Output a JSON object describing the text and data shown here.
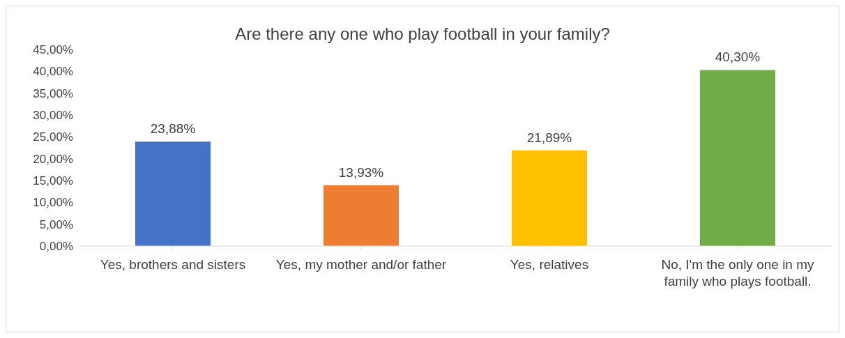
{
  "chart_data": {
    "type": "bar",
    "title": "Are there any one who play football in your family?",
    "categories": [
      "Yes, brothers and sisters",
      "Yes, my mother and/or father",
      "Yes, relatives",
      "No, I'm the only one in my family who plays football."
    ],
    "values": [
      23.88,
      13.93,
      21.89,
      40.3
    ],
    "colors": [
      "#4472c4",
      "#ed7d31",
      "#ffc000",
      "#70ad47"
    ],
    "value_labels": [
      "23,88%",
      "13,93%",
      "21,89%",
      "40,30%"
    ],
    "ylim": [
      0,
      45
    ],
    "yticks": [
      {
        "value": 0,
        "label": "0,00%"
      },
      {
        "value": 5,
        "label": "5,00%"
      },
      {
        "value": 10,
        "label": "10,00%"
      },
      {
        "value": 15,
        "label": "15,00%"
      },
      {
        "value": 20,
        "label": "20,00%"
      },
      {
        "value": 25,
        "label": "25,00%"
      },
      {
        "value": 30,
        "label": "30,00%"
      },
      {
        "value": 35,
        "label": "35,00%"
      },
      {
        "value": 40,
        "label": "40,00%"
      },
      {
        "value": 45,
        "label": "45,00%"
      }
    ],
    "grid": false,
    "legend": false
  }
}
